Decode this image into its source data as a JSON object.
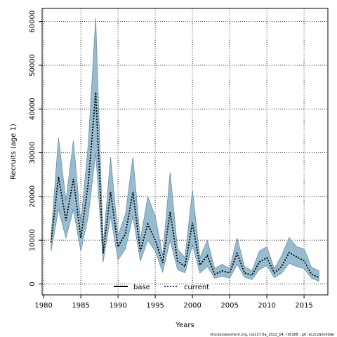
{
  "chart_data": {
    "type": "line",
    "xlabel": "Years",
    "ylabel": "Recruits (age 1)",
    "xlim": [
      1979.8,
      2018.2
    ],
    "ylim": [
      -2500,
      63000
    ],
    "xticks": [
      1980,
      1985,
      1990,
      1995,
      2000,
      2005,
      2010,
      2015
    ],
    "yticks": [
      0,
      10000,
      20000,
      30000,
      40000,
      50000,
      60000
    ],
    "grid": true,
    "grid_style": "dotted",
    "legend_position": "bottom-center",
    "legend": [
      {
        "name": "base",
        "style": "solid"
      },
      {
        "name": "current",
        "style": "dotted"
      }
    ],
    "x": [
      1981,
      1982,
      1983,
      1984,
      1985,
      1986,
      1987,
      1988,
      1989,
      1990,
      1991,
      1992,
      1993,
      1994,
      1995,
      1996,
      1997,
      1998,
      1999,
      2000,
      2001,
      2002,
      2003,
      2004,
      2005,
      2006,
      2007,
      2008,
      2009,
      2010,
      2011,
      2012,
      2013,
      2014,
      2015,
      2016,
      2017
    ],
    "series": [
      {
        "name": "current",
        "values": [
          9500,
          24500,
          14500,
          24000,
          10500,
          23000,
          43800,
          7000,
          21000,
          8500,
          11500,
          21000,
          7500,
          13700,
          10000,
          4800,
          16500,
          5200,
          4000,
          14000,
          4300,
          6500,
          2200,
          3000,
          2500,
          7000,
          2500,
          2000,
          5000,
          6000,
          2500,
          4000,
          7200,
          6200,
          5300,
          2200,
          1500
        ]
      }
    ],
    "confidence_band": {
      "upper": [
        11000,
        33500,
        19000,
        32800,
        14000,
        32000,
        60800,
        9000,
        29000,
        11000,
        16000,
        29000,
        10000,
        20000,
        15500,
        6500,
        25500,
        8000,
        6000,
        21500,
        6000,
        10000,
        3500,
        4500,
        3500,
        10500,
        4000,
        3000,
        7500,
        8500,
        3500,
        6500,
        10600,
        8500,
        8000,
        3800,
        3000
      ],
      "lower": [
        7500,
        17000,
        10500,
        17000,
        7500,
        15500,
        30000,
        5000,
        15500,
        5500,
        8000,
        15500,
        5200,
        10000,
        7500,
        2700,
        10000,
        3300,
        2500,
        9000,
        2500,
        4000,
        1300,
        1800,
        1300,
        4500,
        1500,
        1000,
        3300,
        4200,
        1400,
        2500,
        4700,
        4000,
        3500,
        1300,
        600
      ]
    },
    "band_color": "#98bccf",
    "band_edge_color": "#6a8fa3",
    "line_color": "#000000"
  },
  "footer": "stockassessment.org, cod.27.6a_2022_b4, r16168 , git: ec2c2a0c6dde"
}
